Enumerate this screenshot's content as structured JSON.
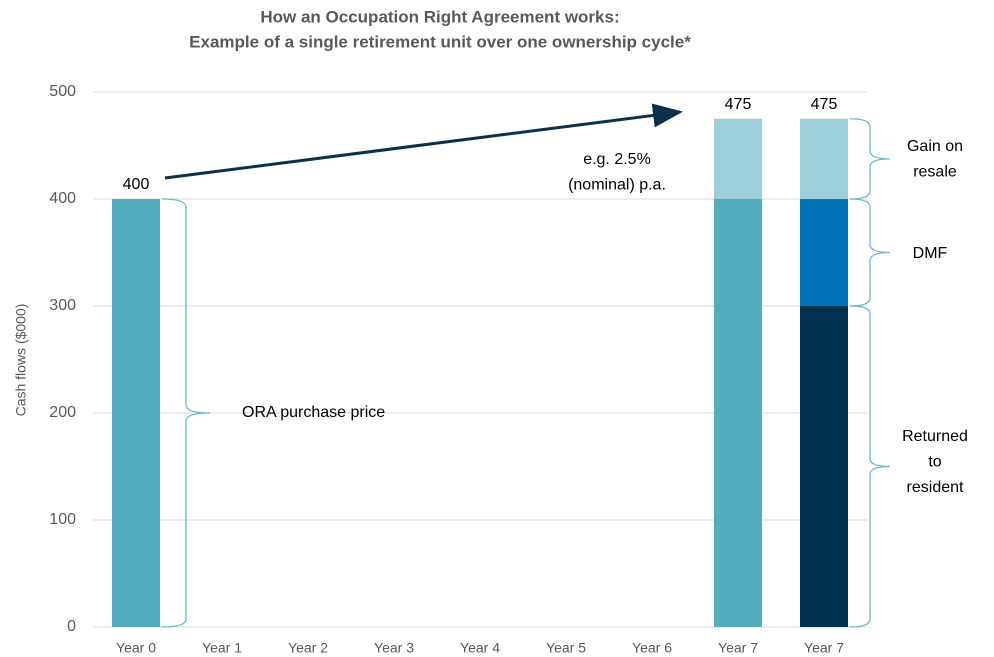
{
  "chart_data": {
    "type": "bar",
    "stacked": true,
    "title": [
      "How an Occupation Right Agreement works:",
      "Example of a single retirement unit over one ownership cycle*"
    ],
    "y_label": "Cash flows ($000)",
    "categories": [
      "Year 0",
      "Year 1",
      "Year 2",
      "Year 3",
      "Year 4",
      "Year 5",
      "Year 6",
      "Year 7",
      "Year 7"
    ],
    "series": [
      {
        "color": "#52adbf",
        "values": [
          400,
          null,
          null,
          null,
          null,
          null,
          null,
          400,
          null
        ]
      },
      {
        "color": "#00324f",
        "values": [
          null,
          null,
          null,
          null,
          null,
          null,
          null,
          null,
          300
        ]
      },
      {
        "color": "#0072b5",
        "values": [
          null,
          null,
          null,
          null,
          null,
          null,
          null,
          null,
          100
        ]
      },
      {
        "color": "#9ccfda",
        "values": [
          null,
          null,
          null,
          null,
          null,
          null,
          null,
          75,
          75
        ]
      }
    ],
    "totals": [
      400,
      null,
      null,
      null,
      null,
      null,
      null,
      475,
      475
    ],
    "annotations": [
      {
        "text": [
          "ORA purchase price"
        ]
      },
      {
        "text": [
          "e.g. 2.5%",
          "(nominal) p.a."
        ]
      },
      {
        "text": [
          "Gain on",
          "resale"
        ]
      },
      {
        "text": [
          "DMF"
        ]
      },
      {
        "text": [
          "Returned",
          "to",
          "resident"
        ]
      }
    ],
    "ylim": [
      0,
      500
    ],
    "yticks": [
      0,
      100,
      200,
      300,
      400,
      500
    ],
    "grid": true
  }
}
